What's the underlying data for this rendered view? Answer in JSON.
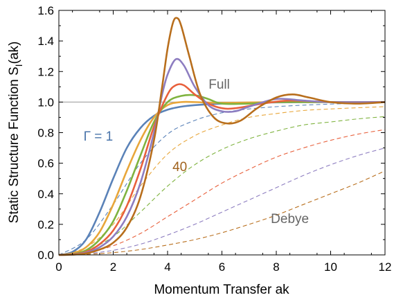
{
  "chart_data": {
    "type": "line",
    "title": "",
    "xlabel": "Momentum Transfer ak",
    "ylabel": "Static Structure Function S",
    "ylabel_sub": "I",
    "ylabel_suffix": "(ak)",
    "xlim": [
      0,
      12
    ],
    "ylim": [
      0,
      1.6
    ],
    "xticks": [
      0,
      2,
      4,
      6,
      8,
      10,
      12
    ],
    "yticks": [
      0.0,
      0.2,
      0.4,
      0.6,
      0.8,
      1.0,
      1.2,
      1.4,
      1.6
    ],
    "ytick_labels": [
      "0.0",
      "0.2",
      "0.4",
      "0.6",
      "0.8",
      "1.0",
      "1.2",
      "1.4",
      "1.6"
    ],
    "grid": false,
    "reference_line": {
      "y": 1.0,
      "color": "#aaaaaa"
    },
    "annotations": [
      {
        "text": "Full",
        "color": "#666666",
        "x": 5.9,
        "y": 1.12
      },
      {
        "text": "Γ = 1",
        "color": "#4a74aa",
        "x": 1.45,
        "y": 0.78
      },
      {
        "text": "40",
        "color": "#a0621d",
        "x": 4.45,
        "y": 0.58
      },
      {
        "text": "Debye",
        "color": "#666666",
        "x": 8.5,
        "y": 0.24
      }
    ],
    "series": [
      {
        "style": "solid",
        "color": "#5a82b8",
        "points": [
          [
            0,
            0
          ],
          [
            0.5,
            0.02
          ],
          [
            1.0,
            0.1
          ],
          [
            1.5,
            0.28
          ],
          [
            2.0,
            0.5
          ],
          [
            2.5,
            0.7
          ],
          [
            3.0,
            0.83
          ],
          [
            3.5,
            0.91
          ],
          [
            4.0,
            0.95
          ],
          [
            4.5,
            0.97
          ],
          [
            5.0,
            0.98
          ],
          [
            6.0,
            0.99
          ],
          [
            7.0,
            0.995
          ],
          [
            8.0,
            0.998
          ],
          [
            10.0,
            1.0
          ],
          [
            12.0,
            1.0
          ]
        ]
      },
      {
        "style": "solid",
        "color": "#e8a63a",
        "points": [
          [
            0,
            0
          ],
          [
            0.5,
            0.01
          ],
          [
            1.0,
            0.05
          ],
          [
            1.5,
            0.15
          ],
          [
            2.0,
            0.33
          ],
          [
            2.5,
            0.55
          ],
          [
            3.0,
            0.75
          ],
          [
            3.5,
            0.9
          ],
          [
            4.0,
            0.98
          ],
          [
            4.5,
            1.0
          ],
          [
            5.0,
            1.0
          ],
          [
            6.0,
            0.995
          ],
          [
            8.0,
            1.0
          ],
          [
            10.0,
            1.0
          ],
          [
            12.0,
            1.0
          ]
        ]
      },
      {
        "style": "solid",
        "color": "#7fb33f",
        "points": [
          [
            0,
            0
          ],
          [
            0.5,
            0.005
          ],
          [
            1.0,
            0.03
          ],
          [
            1.5,
            0.1
          ],
          [
            2.0,
            0.22
          ],
          [
            2.5,
            0.42
          ],
          [
            3.0,
            0.65
          ],
          [
            3.5,
            0.87
          ],
          [
            4.0,
            1.0
          ],
          [
            4.5,
            1.04
          ],
          [
            5.0,
            1.045
          ],
          [
            5.5,
            1.02
          ],
          [
            6.0,
            0.99
          ],
          [
            7.0,
            0.99
          ],
          [
            8.0,
            1.0
          ],
          [
            10.0,
            1.0
          ],
          [
            12.0,
            1.0
          ]
        ]
      },
      {
        "style": "solid",
        "color": "#e8603c",
        "points": [
          [
            0,
            0
          ],
          [
            0.5,
            0.004
          ],
          [
            1.0,
            0.02
          ],
          [
            1.5,
            0.07
          ],
          [
            2.0,
            0.16
          ],
          [
            2.5,
            0.32
          ],
          [
            3.0,
            0.56
          ],
          [
            3.5,
            0.84
          ],
          [
            4.0,
            1.05
          ],
          [
            4.3,
            1.11
          ],
          [
            4.6,
            1.11
          ],
          [
            5.0,
            1.05
          ],
          [
            5.5,
            0.99
          ],
          [
            6.0,
            0.96
          ],
          [
            6.5,
            0.96
          ],
          [
            7.5,
            0.99
          ],
          [
            8.5,
            1.01
          ],
          [
            10.0,
            1.0
          ],
          [
            12.0,
            1.0
          ]
        ]
      },
      {
        "style": "solid",
        "color": "#8d7dc0",
        "points": [
          [
            0,
            0
          ],
          [
            0.5,
            0.003
          ],
          [
            1.0,
            0.015
          ],
          [
            1.5,
            0.05
          ],
          [
            2.0,
            0.12
          ],
          [
            2.5,
            0.25
          ],
          [
            3.0,
            0.47
          ],
          [
            3.5,
            0.8
          ],
          [
            3.8,
            1.05
          ],
          [
            4.0,
            1.18
          ],
          [
            4.3,
            1.28
          ],
          [
            4.6,
            1.24
          ],
          [
            5.0,
            1.1
          ],
          [
            5.5,
            0.98
          ],
          [
            6.0,
            0.94
          ],
          [
            6.5,
            0.94
          ],
          [
            7.0,
            0.97
          ],
          [
            8.0,
            1.02
          ],
          [
            9.0,
            1.01
          ],
          [
            10.0,
            1.0
          ],
          [
            12.0,
            1.0
          ]
        ]
      },
      {
        "style": "solid",
        "color": "#b86e1c",
        "points": [
          [
            0,
            0
          ],
          [
            0.5,
            0.002
          ],
          [
            1.0,
            0.01
          ],
          [
            1.5,
            0.035
          ],
          [
            2.0,
            0.08
          ],
          [
            2.5,
            0.18
          ],
          [
            3.0,
            0.38
          ],
          [
            3.5,
            0.75
          ],
          [
            3.8,
            1.1
          ],
          [
            4.0,
            1.35
          ],
          [
            4.2,
            1.52
          ],
          [
            4.35,
            1.55
          ],
          [
            4.5,
            1.5
          ],
          [
            4.8,
            1.3
          ],
          [
            5.2,
            1.05
          ],
          [
            5.7,
            0.9
          ],
          [
            6.2,
            0.86
          ],
          [
            6.7,
            0.88
          ],
          [
            7.3,
            0.96
          ],
          [
            8.0,
            1.03
          ],
          [
            8.6,
            1.05
          ],
          [
            9.2,
            1.03
          ],
          [
            10.0,
            1.0
          ],
          [
            11.0,
            0.99
          ],
          [
            12.0,
            1.0
          ]
        ]
      },
      {
        "style": "dashed",
        "color": "#5a82b8",
        "points": [
          [
            0,
            0
          ],
          [
            1,
            0.1
          ],
          [
            2,
            0.33
          ],
          [
            3,
            0.6
          ],
          [
            4,
            0.79
          ],
          [
            5,
            0.88
          ],
          [
            6,
            0.93
          ],
          [
            7,
            0.955
          ],
          [
            8,
            0.97
          ],
          [
            9,
            0.98
          ],
          [
            10,
            0.987
          ],
          [
            11,
            0.992
          ],
          [
            12,
            0.995
          ]
        ]
      },
      {
        "style": "dashed",
        "color": "#e8a63a",
        "points": [
          [
            0,
            0
          ],
          [
            1,
            0.05
          ],
          [
            2,
            0.2
          ],
          [
            3,
            0.45
          ],
          [
            4,
            0.66
          ],
          [
            5,
            0.78
          ],
          [
            6,
            0.85
          ],
          [
            7,
            0.9
          ],
          [
            8,
            0.925
          ],
          [
            9,
            0.945
          ],
          [
            10,
            0.955
          ],
          [
            11,
            0.963
          ],
          [
            12,
            0.97
          ]
        ]
      },
      {
        "style": "dashed",
        "color": "#7fb33f",
        "points": [
          [
            0,
            0
          ],
          [
            1,
            0.03
          ],
          [
            2,
            0.12
          ],
          [
            3,
            0.28
          ],
          [
            4,
            0.45
          ],
          [
            5,
            0.59
          ],
          [
            6,
            0.69
          ],
          [
            7,
            0.76
          ],
          [
            8,
            0.81
          ],
          [
            9,
            0.85
          ],
          [
            10,
            0.87
          ],
          [
            11,
            0.89
          ],
          [
            12,
            0.905
          ]
        ]
      },
      {
        "style": "dashed",
        "color": "#e8603c",
        "points": [
          [
            0,
            0
          ],
          [
            1,
            0.015
          ],
          [
            2,
            0.06
          ],
          [
            3,
            0.14
          ],
          [
            4,
            0.25
          ],
          [
            5,
            0.36
          ],
          [
            6,
            0.47
          ],
          [
            7,
            0.56
          ],
          [
            8,
            0.64
          ],
          [
            9,
            0.7
          ],
          [
            10,
            0.75
          ],
          [
            11,
            0.79
          ],
          [
            12,
            0.82
          ]
        ]
      },
      {
        "style": "dashed",
        "color": "#8d7dc0",
        "points": [
          [
            0,
            0
          ],
          [
            1,
            0.008
          ],
          [
            2,
            0.03
          ],
          [
            3,
            0.07
          ],
          [
            4,
            0.13
          ],
          [
            5,
            0.2
          ],
          [
            6,
            0.28
          ],
          [
            7,
            0.36
          ],
          [
            8,
            0.44
          ],
          [
            9,
            0.52
          ],
          [
            10,
            0.59
          ],
          [
            11,
            0.65
          ],
          [
            12,
            0.7
          ]
        ]
      },
      {
        "style": "dashed",
        "color": "#b86e1c",
        "points": [
          [
            0,
            0
          ],
          [
            1,
            0.004
          ],
          [
            2,
            0.015
          ],
          [
            3,
            0.035
          ],
          [
            4,
            0.065
          ],
          [
            5,
            0.1
          ],
          [
            6,
            0.145
          ],
          [
            7,
            0.2
          ],
          [
            8,
            0.26
          ],
          [
            9,
            0.33
          ],
          [
            10,
            0.4
          ],
          [
            11,
            0.47
          ],
          [
            12,
            0.55
          ]
        ]
      }
    ]
  }
}
